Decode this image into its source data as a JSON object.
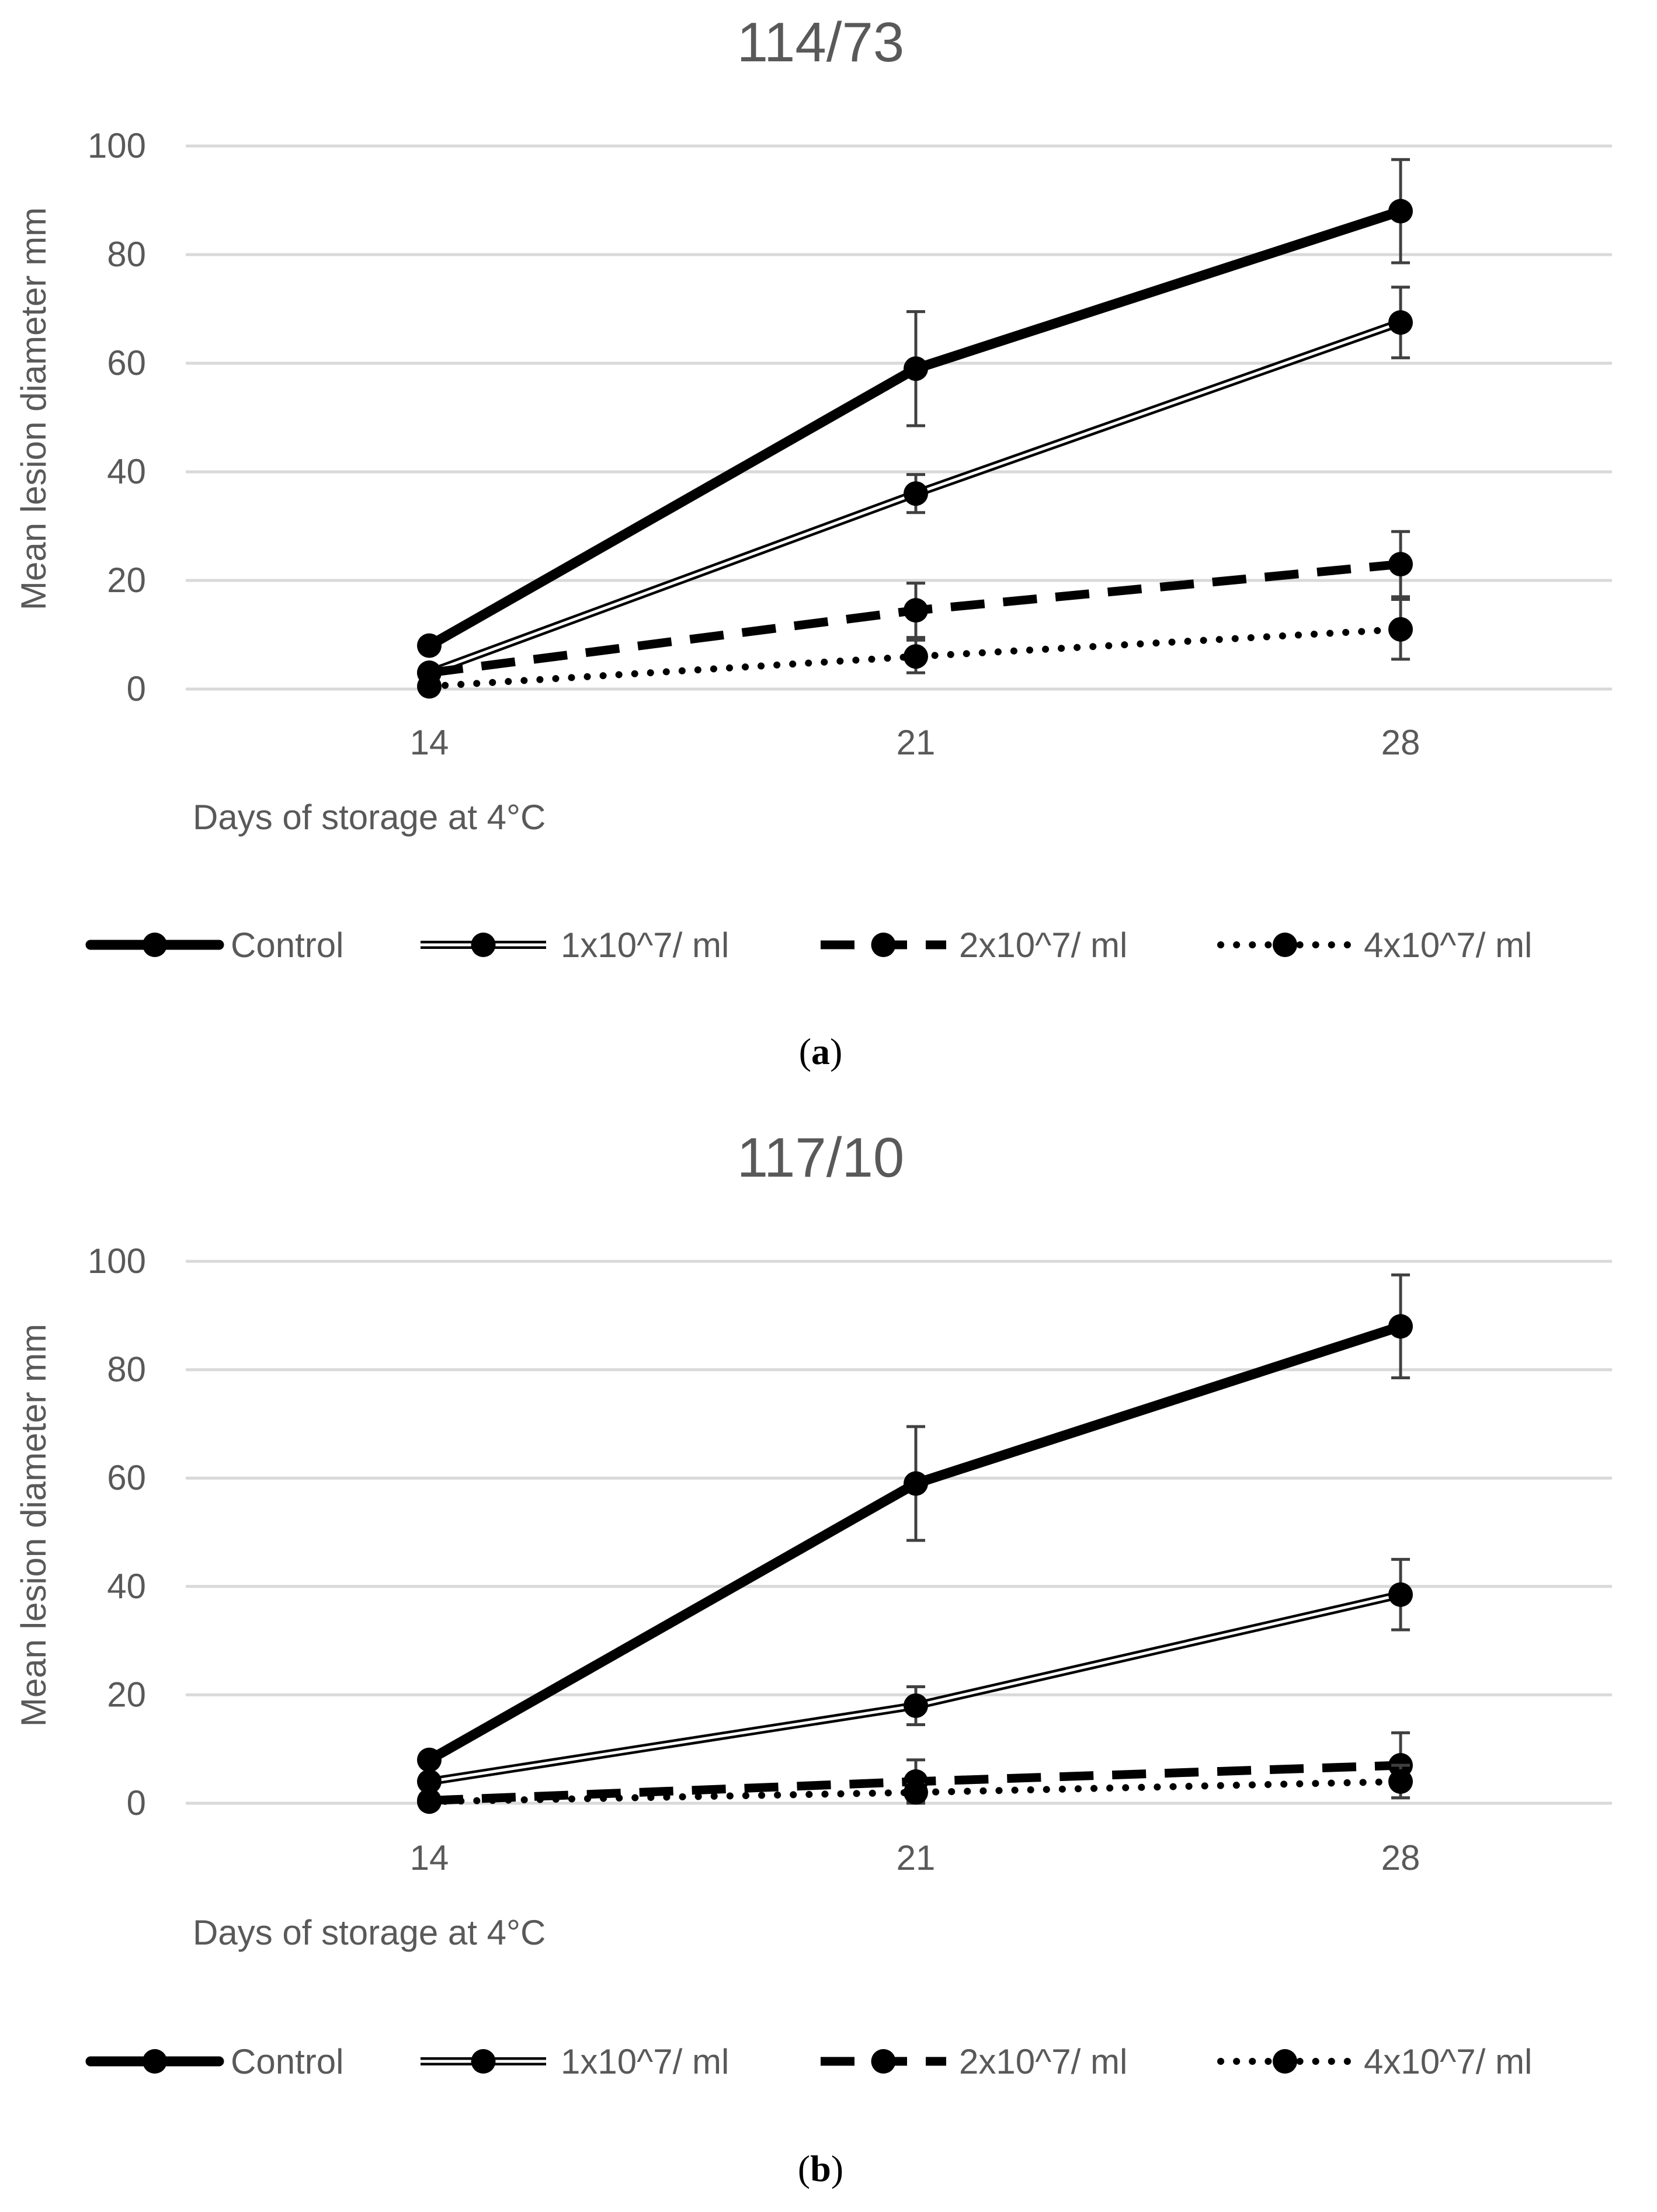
{
  "chart_data": [
    {
      "type": "line",
      "panel": "a",
      "title": "114/73",
      "xlabel": "Days of storage at 4°C",
      "ylabel": "Mean lesion diameter mm",
      "categories": [
        "14",
        "21",
        "28"
      ],
      "ylim": [
        0,
        100
      ],
      "yticks": [
        "0",
        "20",
        "40",
        "60",
        "80",
        "100"
      ],
      "grid": true,
      "legend": "bottom",
      "series": [
        {
          "name": "Control",
          "values": [
            8,
            59,
            88
          ],
          "errors": [
            0,
            10.5,
            9.5
          ],
          "style": "solid-thick"
        },
        {
          "name": "1x10^7/ ml",
          "values": [
            3,
            36,
            67.5
          ],
          "errors": [
            0,
            3.5,
            6.5
          ],
          "style": "double"
        },
        {
          "name": "2x10^7/ ml",
          "values": [
            3,
            14.5,
            23
          ],
          "errors": [
            0,
            5,
            6
          ],
          "style": "dashed"
        },
        {
          "name": "4x10^7/ ml",
          "values": [
            0.5,
            6,
            11
          ],
          "errors": [
            0,
            3,
            5.5
          ],
          "style": "dotted"
        }
      ]
    },
    {
      "type": "line",
      "panel": "b",
      "title": "117/10",
      "xlabel": "Days of storage at 4°C",
      "ylabel": "Mean lesion diameter mm",
      "categories": [
        "14",
        "21",
        "28"
      ],
      "ylim": [
        0,
        100
      ],
      "yticks": [
        "0",
        "20",
        "40",
        "60",
        "80",
        "100"
      ],
      "grid": true,
      "legend": "bottom",
      "series": [
        {
          "name": "Control",
          "values": [
            8,
            59,
            88
          ],
          "errors": [
            0,
            10.5,
            9.5
          ],
          "style": "solid-thick"
        },
        {
          "name": "1x10^7/ ml",
          "values": [
            4,
            18,
            38.5
          ],
          "errors": [
            0,
            3.5,
            6.5
          ],
          "style": "double"
        },
        {
          "name": "2x10^7/ ml",
          "values": [
            0.5,
            4,
            7
          ],
          "errors": [
            0,
            4,
            6
          ],
          "style": "dashed"
        },
        {
          "name": "4x10^7/ ml",
          "values": [
            0.3,
            2,
            4
          ],
          "errors": [
            0,
            1.5,
            3
          ],
          "style": "dotted"
        }
      ]
    }
  ],
  "panel_labels": [
    {
      "open": "(",
      "letter": "a",
      "close": ")"
    },
    {
      "open": "(",
      "letter": "b",
      "close": ")"
    }
  ],
  "colors": {
    "line": "#000000",
    "grid": "#d9d9d9",
    "text": "#595959"
  }
}
